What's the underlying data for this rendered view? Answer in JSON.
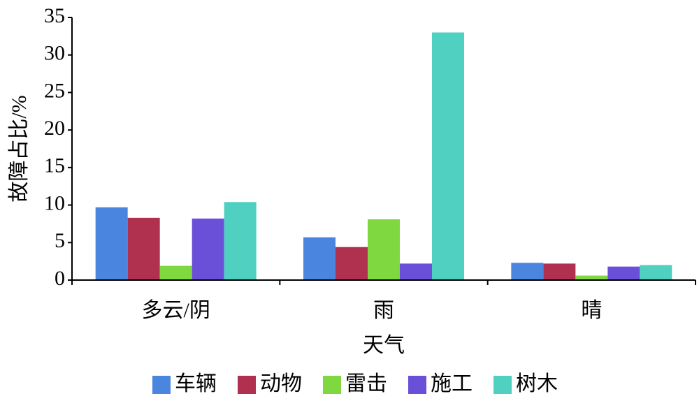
{
  "chart_data": {
    "type": "bar",
    "x_label": "天气",
    "y_label": "故障占比/%",
    "categories": [
      "多云/阴",
      "雨",
      "晴"
    ],
    "series": [
      {
        "name": "车辆",
        "color": "#4a86e0",
        "values": [
          9.7,
          5.7,
          2.3
        ]
      },
      {
        "name": "动物",
        "color": "#b03050",
        "values": [
          8.3,
          4.4,
          2.2
        ]
      },
      {
        "name": "雷击",
        "color": "#80d840",
        "values": [
          1.9,
          8.1,
          0.6
        ]
      },
      {
        "name": "施工",
        "color": "#6a50d8",
        "values": [
          8.2,
          2.2,
          1.8
        ]
      },
      {
        "name": "树木",
        "color": "#50d0c0",
        "values": [
          10.4,
          33,
          2.0
        ]
      }
    ],
    "ylim": [
      0,
      35
    ],
    "yticks": [
      0,
      5,
      10,
      15,
      20,
      25,
      30,
      35
    ],
    "grid": false,
    "legend": "bottom"
  }
}
